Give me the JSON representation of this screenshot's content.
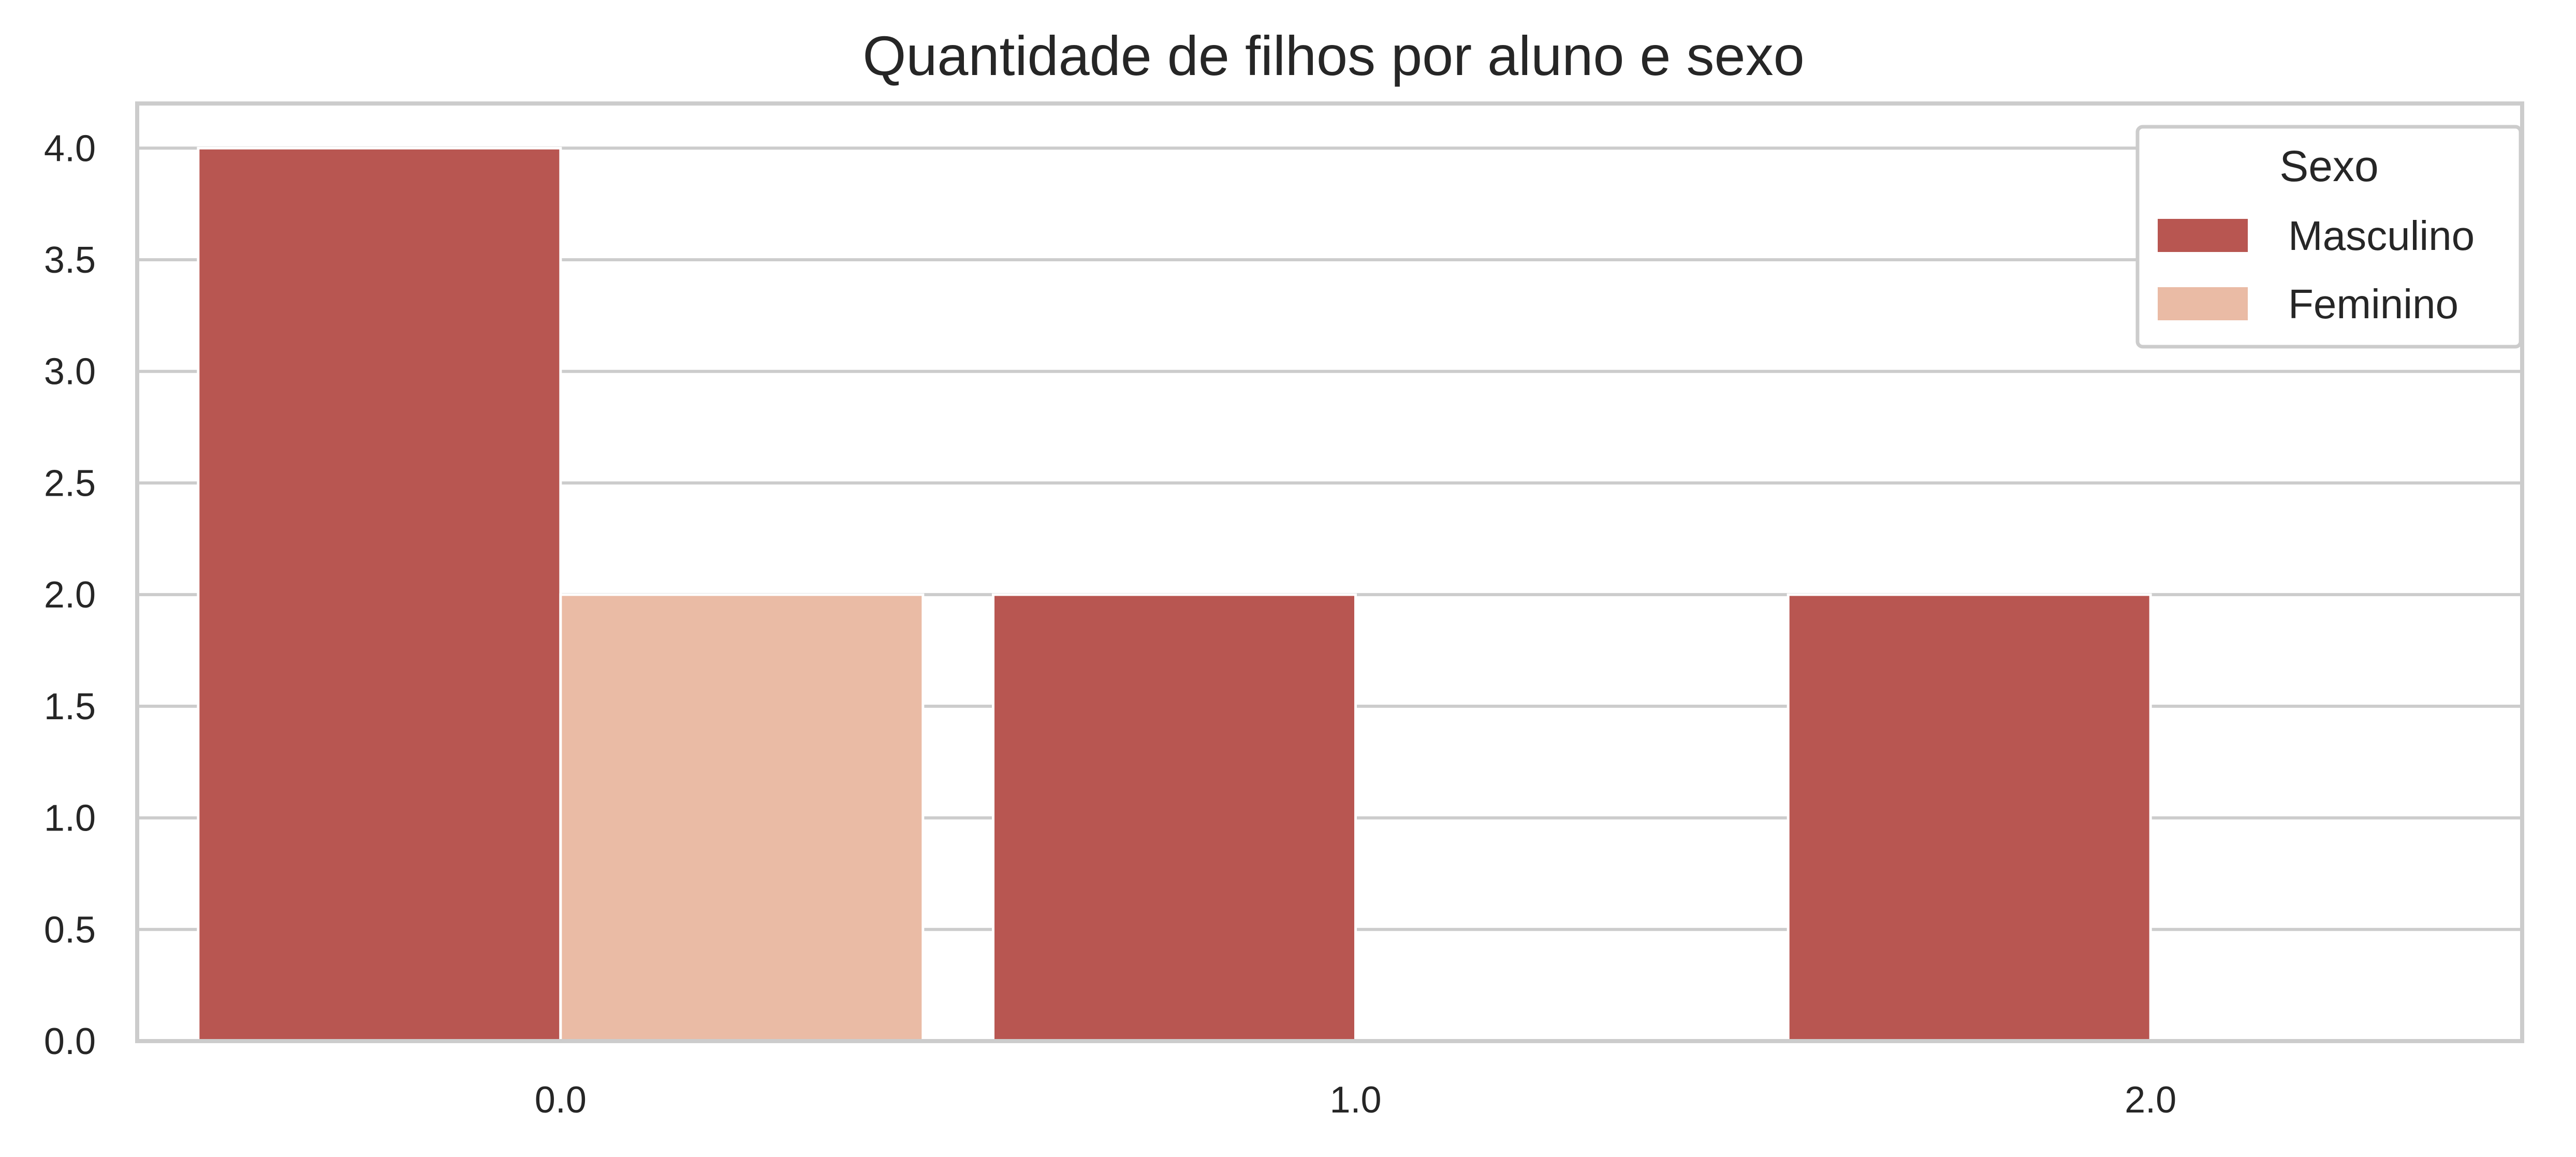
{
  "chart_data": {
    "type": "bar",
    "title": "Quantidade de filhos por aluno e sexo",
    "xlabel": "",
    "ylabel": "",
    "categories": [
      "0.0",
      "1.0",
      "2.0"
    ],
    "series": [
      {
        "name": "Masculino",
        "values": [
          4,
          2,
          2
        ],
        "color": "#b85651"
      },
      {
        "name": "Feminino",
        "values": [
          2,
          0,
          0
        ],
        "color": "#eabba5"
      }
    ],
    "ylim": [
      0,
      4.2
    ],
    "y_ticks": [
      "0.0",
      "0.5",
      "1.0",
      "1.5",
      "2.0",
      "2.5",
      "3.0",
      "3.5",
      "4.0"
    ],
    "grid": true,
    "legend": {
      "title": "Sexo",
      "placement": "top-right"
    }
  },
  "colors": {
    "axis": "#cccccc",
    "grid": "#cccccc",
    "text": "#262626",
    "background": "#ffffff"
  }
}
